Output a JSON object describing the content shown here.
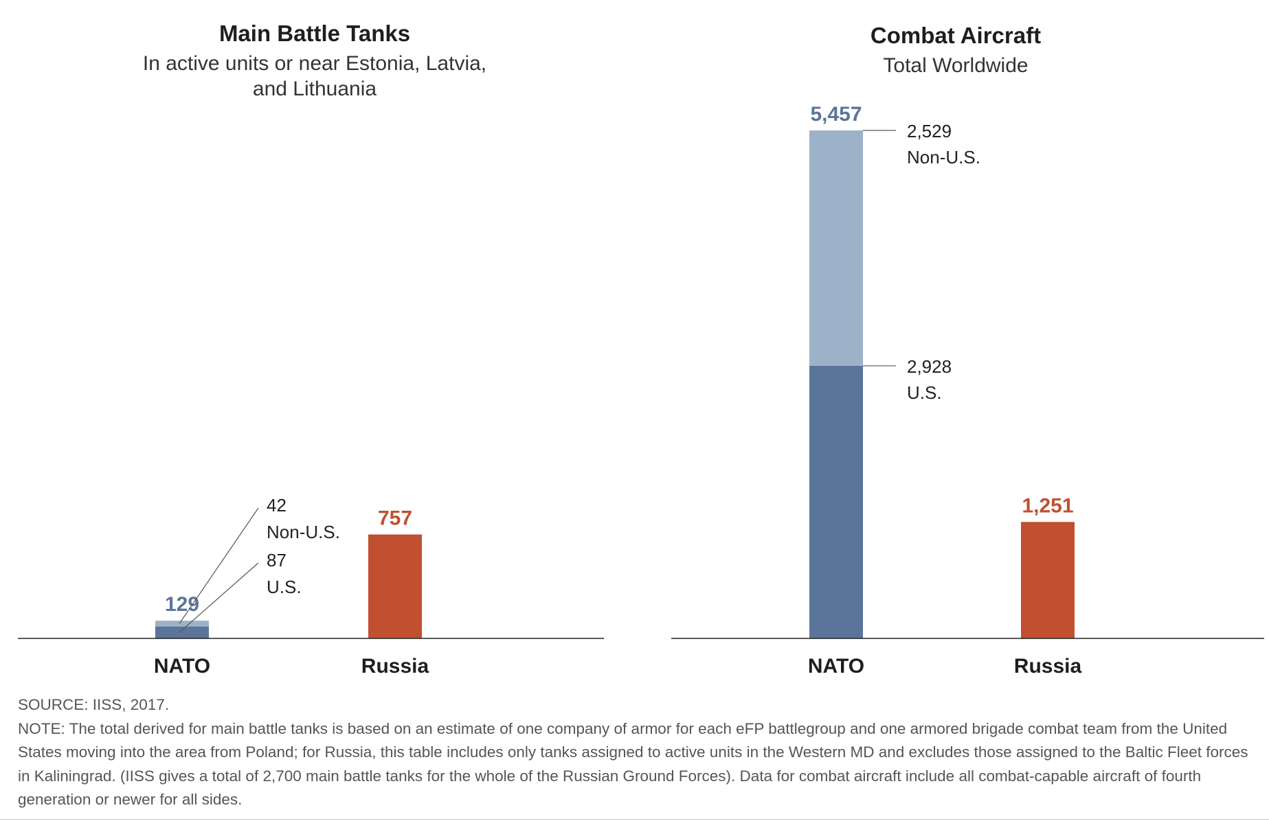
{
  "colors": {
    "us": "#5a7599",
    "non_us": "#9db2c8",
    "russia": "#c05030",
    "axis": "#222222"
  },
  "chart_data": [
    {
      "type": "bar",
      "stacked": true,
      "title": "Main Battle Tanks",
      "subtitle_lines": [
        "In active units or near Estonia, Latvia,",
        "and Lithuania"
      ],
      "categories": [
        "NATO",
        "Russia"
      ],
      "ylim": [
        0,
        3700
      ],
      "totals": [
        "129",
        "757"
      ],
      "bars": [
        {
          "category": "NATO",
          "segments": [
            {
              "name": "U.S.",
              "value": 87,
              "value_label": "87"
            },
            {
              "name": "Non-U.S.",
              "value": 42,
              "value_label": "42"
            }
          ]
        },
        {
          "category": "Russia",
          "segments": [
            {
              "name": "Russia",
              "value": 757
            }
          ]
        }
      ]
    },
    {
      "type": "bar",
      "stacked": true,
      "title": "Combat Aircraft",
      "subtitle_lines": [
        "Total Worldwide"
      ],
      "categories": [
        "NATO",
        "Russia"
      ],
      "ylim": [
        0,
        5457
      ],
      "totals": [
        "5,457",
        "1,251"
      ],
      "bars": [
        {
          "category": "NATO",
          "segments": [
            {
              "name": "U.S.",
              "value": 2928,
              "value_label": "2,928"
            },
            {
              "name": "Non-U.S.",
              "value": 2529,
              "value_label": "2,529"
            }
          ]
        },
        {
          "category": "Russia",
          "segments": [
            {
              "name": "Russia",
              "value": 1251
            }
          ]
        }
      ]
    }
  ],
  "source": "SOURCE: IISS, 2017.",
  "note": "NOTE: The total derived for main battle tanks is based on an estimate of one company of armor for each eFP battlegroup and one armored brigade combat team from the United States moving into the area from Poland; for Russia, this table includes only tanks assigned to active units in the Western MD and excludes those assigned to the Baltic Fleet forces in Kaliningrad. (IISS gives a total of 2,700 main battle tanks for the whole of the Russian Ground Forces). Data for combat aircraft include all combat-capable aircraft of fourth generation or newer for all sides."
}
